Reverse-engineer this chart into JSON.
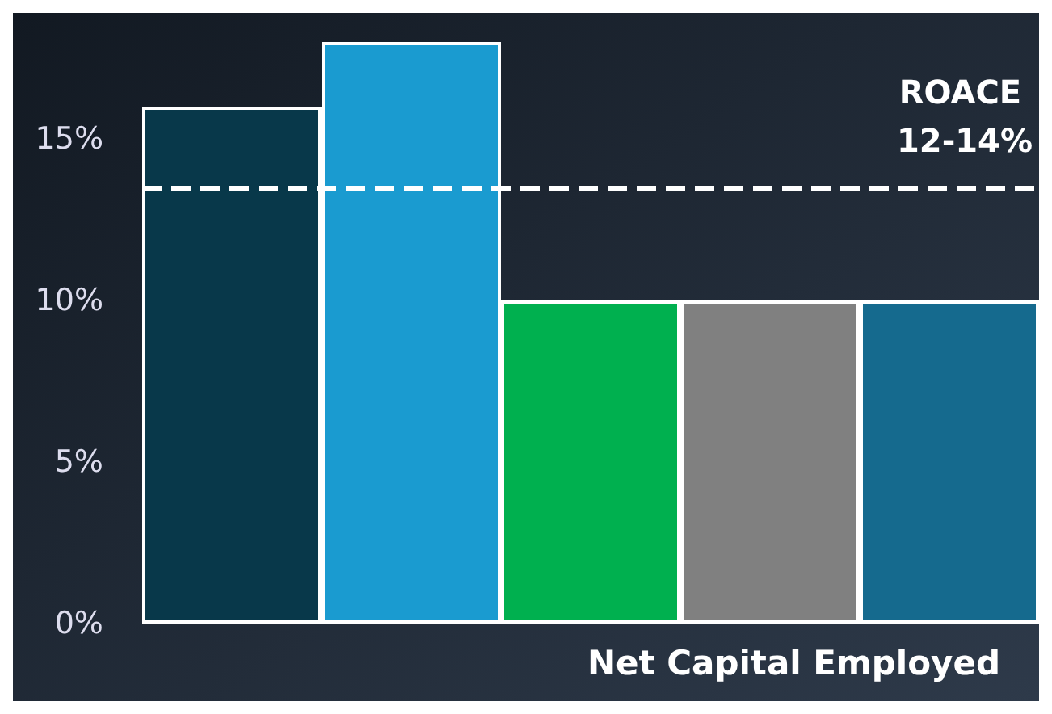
{
  "chart_data": {
    "type": "bar",
    "categories": [
      null,
      null,
      null,
      null,
      null
    ],
    "values": [
      16,
      18,
      10,
      10,
      10
    ],
    "colors": [
      "#08384a",
      "#1a9bd0",
      "#00b04f",
      "#808080",
      "#156a8e"
    ],
    "xlabel": "Net Capital Employed",
    "ylim": [
      0,
      18
    ],
    "yticks": [
      {
        "value": 0,
        "label": "0%"
      },
      {
        "value": 5,
        "label": "5%"
      },
      {
        "value": 10,
        "label": "10%"
      },
      {
        "value": 15,
        "label": "15%"
      }
    ],
    "grid": false,
    "ref_lines": [
      {
        "axis": "y",
        "value": 13.5,
        "label": "ROACE 12-14%",
        "color": "#ffffff",
        "line_style": "dashed"
      }
    ]
  }
}
